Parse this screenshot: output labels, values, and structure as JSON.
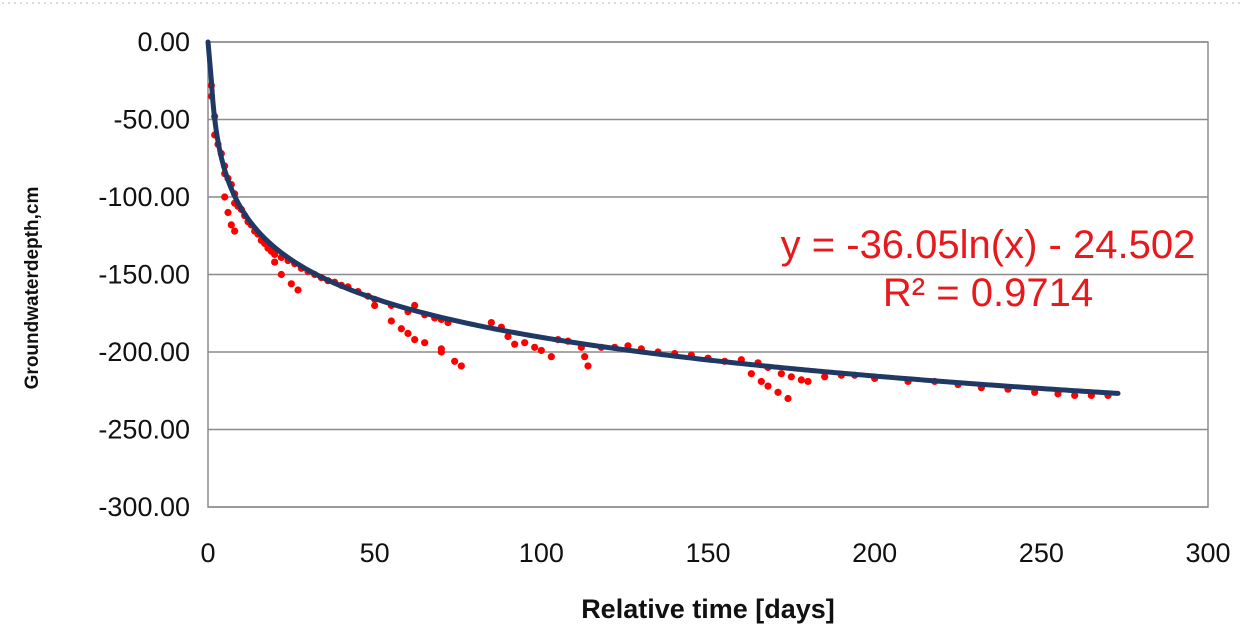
{
  "chart_data": {
    "type": "scatter",
    "title": "",
    "xlabel": "Relative time  [days]",
    "ylabel": "Groundwaterdepth,cm",
    "xlim": [
      0,
      300
    ],
    "ylim": [
      -300,
      0
    ],
    "x_ticks": [
      "0",
      "50",
      "100",
      "150",
      "200",
      "250",
      "300"
    ],
    "y_ticks": [
      "0.00",
      "-50.00",
      "-100.00",
      "-150.00",
      "-200.00",
      "-250.00",
      "-300.00"
    ],
    "grid": "horizontal",
    "legend": "none",
    "colors": {
      "observed": "#ff0000",
      "trend": "#1f3864",
      "equation": "#e8191c"
    },
    "series": [
      {
        "type": "scatter",
        "points": [
          [
            1,
            -28
          ],
          [
            1,
            -35
          ],
          [
            2,
            -48
          ],
          [
            2,
            -60
          ],
          [
            3,
            -66
          ],
          [
            4,
            -72
          ],
          [
            5,
            -80
          ],
          [
            5,
            -85
          ],
          [
            6,
            -88
          ],
          [
            7,
            -92
          ],
          [
            8,
            -98
          ],
          [
            8,
            -104
          ],
          [
            9,
            -106
          ],
          [
            10,
            -108
          ],
          [
            11,
            -112
          ],
          [
            12,
            -116
          ],
          [
            13,
            -118
          ],
          [
            14,
            -122
          ],
          [
            15,
            -124
          ],
          [
            16,
            -128
          ],
          [
            17,
            -130
          ],
          [
            18,
            -133
          ],
          [
            19,
            -135
          ],
          [
            20,
            -137
          ],
          [
            22,
            -139
          ],
          [
            24,
            -141
          ],
          [
            26,
            -143
          ],
          [
            28,
            -146
          ],
          [
            30,
            -148
          ],
          [
            32,
            -150
          ],
          [
            34,
            -152
          ],
          [
            36,
            -154
          ],
          [
            38,
            -155
          ],
          [
            40,
            -157
          ],
          [
            42,
            -158
          ],
          [
            45,
            -161
          ],
          [
            48,
            -164
          ],
          [
            50,
            -166
          ],
          [
            55,
            -170
          ],
          [
            60,
            -174
          ],
          [
            62,
            -170
          ],
          [
            65,
            -176
          ],
          [
            68,
            -178
          ],
          [
            70,
            -179
          ],
          [
            72,
            -181
          ],
          [
            5,
            -100
          ],
          [
            6,
            -110
          ],
          [
            7,
            -118
          ],
          [
            8,
            -122
          ],
          [
            20,
            -142
          ],
          [
            22,
            -150
          ],
          [
            25,
            -156
          ],
          [
            27,
            -160
          ],
          [
            50,
            -170
          ],
          [
            55,
            -180
          ],
          [
            60,
            -188
          ],
          [
            65,
            -194
          ],
          [
            70,
            -198
          ],
          [
            58,
            -185
          ],
          [
            62,
            -192
          ],
          [
            70,
            -200
          ],
          [
            74,
            -206
          ],
          [
            76,
            -209
          ],
          [
            85,
            -181
          ],
          [
            88,
            -184
          ],
          [
            90,
            -190
          ],
          [
            92,
            -195
          ],
          [
            95,
            -194
          ],
          [
            98,
            -197
          ],
          [
            100,
            -199
          ],
          [
            103,
            -203
          ],
          [
            105,
            -192
          ],
          [
            108,
            -193
          ],
          [
            112,
            -197
          ],
          [
            113,
            -203
          ],
          [
            114,
            -209
          ],
          [
            118,
            -197
          ],
          [
            122,
            -197
          ],
          [
            126,
            -196
          ],
          [
            130,
            -198
          ],
          [
            135,
            -200
          ],
          [
            140,
            -201
          ],
          [
            145,
            -202
          ],
          [
            150,
            -204
          ],
          [
            155,
            -206
          ],
          [
            160,
            -205
          ],
          [
            163,
            -214
          ],
          [
            166,
            -219
          ],
          [
            168,
            -222
          ],
          [
            171,
            -226
          ],
          [
            174,
            -230
          ],
          [
            165,
            -207
          ],
          [
            168,
            -210
          ],
          [
            172,
            -214
          ],
          [
            175,
            -216
          ],
          [
            178,
            -218
          ],
          [
            180,
            -219
          ],
          [
            185,
            -216
          ],
          [
            190,
            -215
          ],
          [
            194,
            -215
          ],
          [
            200,
            -217
          ],
          [
            210,
            -219
          ],
          [
            218,
            -219
          ],
          [
            225,
            -221
          ],
          [
            232,
            -223
          ],
          [
            240,
            -224
          ],
          [
            248,
            -226
          ],
          [
            255,
            -227
          ],
          [
            260,
            -228
          ],
          [
            265,
            -228
          ],
          [
            270,
            -228
          ]
        ]
      },
      {
        "type": "line",
        "name": "trend",
        "model": "log",
        "coefficients": {
          "a": -36.05,
          "b": -24.502
        },
        "x_range": [
          1,
          273
        ]
      }
    ],
    "annotations": [
      "y = -36.05ln(x) - 24.502",
      "R² = 0.9714"
    ]
  }
}
